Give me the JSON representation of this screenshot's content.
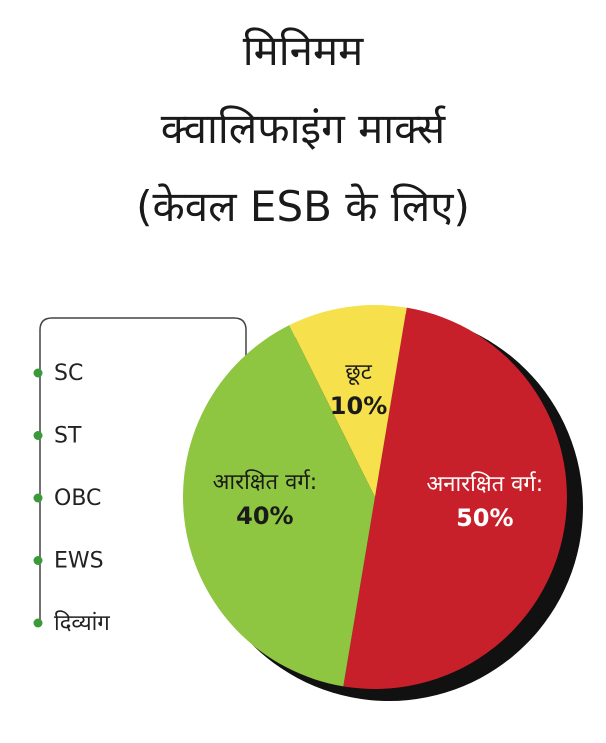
{
  "chart_data": {
    "type": "pie",
    "title_lines": [
      "मिनिमम",
      "क्वालिफाइंग मार्क्स",
      "(केवल ESB के लिए)"
    ],
    "categories": [
      "अनारक्षित वर्ग:",
      "आरक्षित वर्ग:",
      "छूट"
    ],
    "values": [
      50,
      40,
      10
    ],
    "value_labels": [
      "50%",
      "40%",
      "10%"
    ],
    "colors": [
      "#c8202b",
      "#8fc641",
      "#f6e04c"
    ],
    "reserved_groups": [
      "SC",
      "ST",
      "OBC",
      "EWS",
      "दिव्यांग"
    ]
  }
}
